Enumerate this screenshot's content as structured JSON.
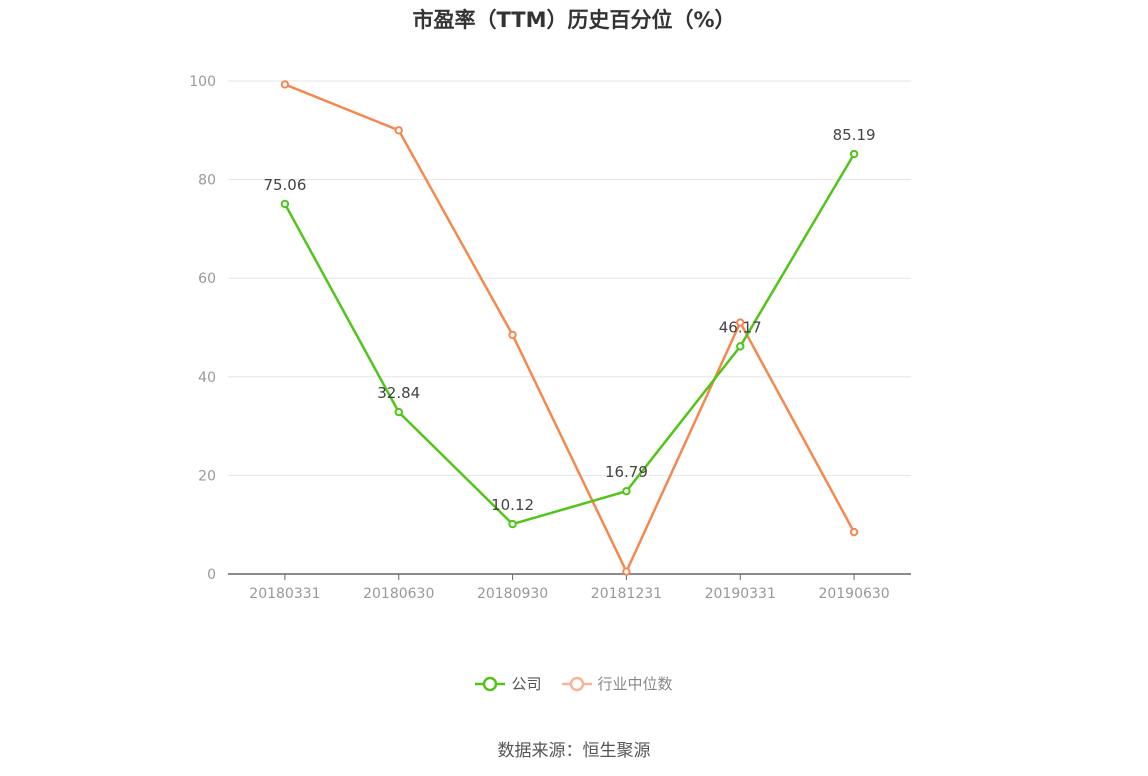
{
  "chart_data": {
    "type": "line",
    "title": "市盈率（TTM）历史百分位（%）",
    "categories": [
      "20180331",
      "20180630",
      "20180930",
      "20181231",
      "20190331",
      "20190630"
    ],
    "ylim": [
      0,
      100
    ],
    "yticks": [
      0,
      20,
      40,
      60,
      80,
      100
    ],
    "grid": true,
    "legend_position": "bottom",
    "series": [
      {
        "name": "公司",
        "color": "#52c41a",
        "values": [
          75.06,
          32.84,
          10.12,
          16.79,
          46.17,
          85.19
        ],
        "labels": [
          "75.06",
          "32.84",
          "10.12",
          "16.79",
          "46.17",
          "85.19"
        ]
      },
      {
        "name": "行业中位数",
        "color": "#f5884f",
        "values": [
          99.3,
          90.0,
          48.5,
          0.5,
          51.0,
          8.5
        ]
      }
    ]
  },
  "legend": {
    "company": {
      "label": "公司",
      "color": "#52c41a"
    },
    "industry": {
      "label": "行业中位数",
      "color": "#f9b398"
    }
  },
  "source": "数据来源：恒生聚源"
}
